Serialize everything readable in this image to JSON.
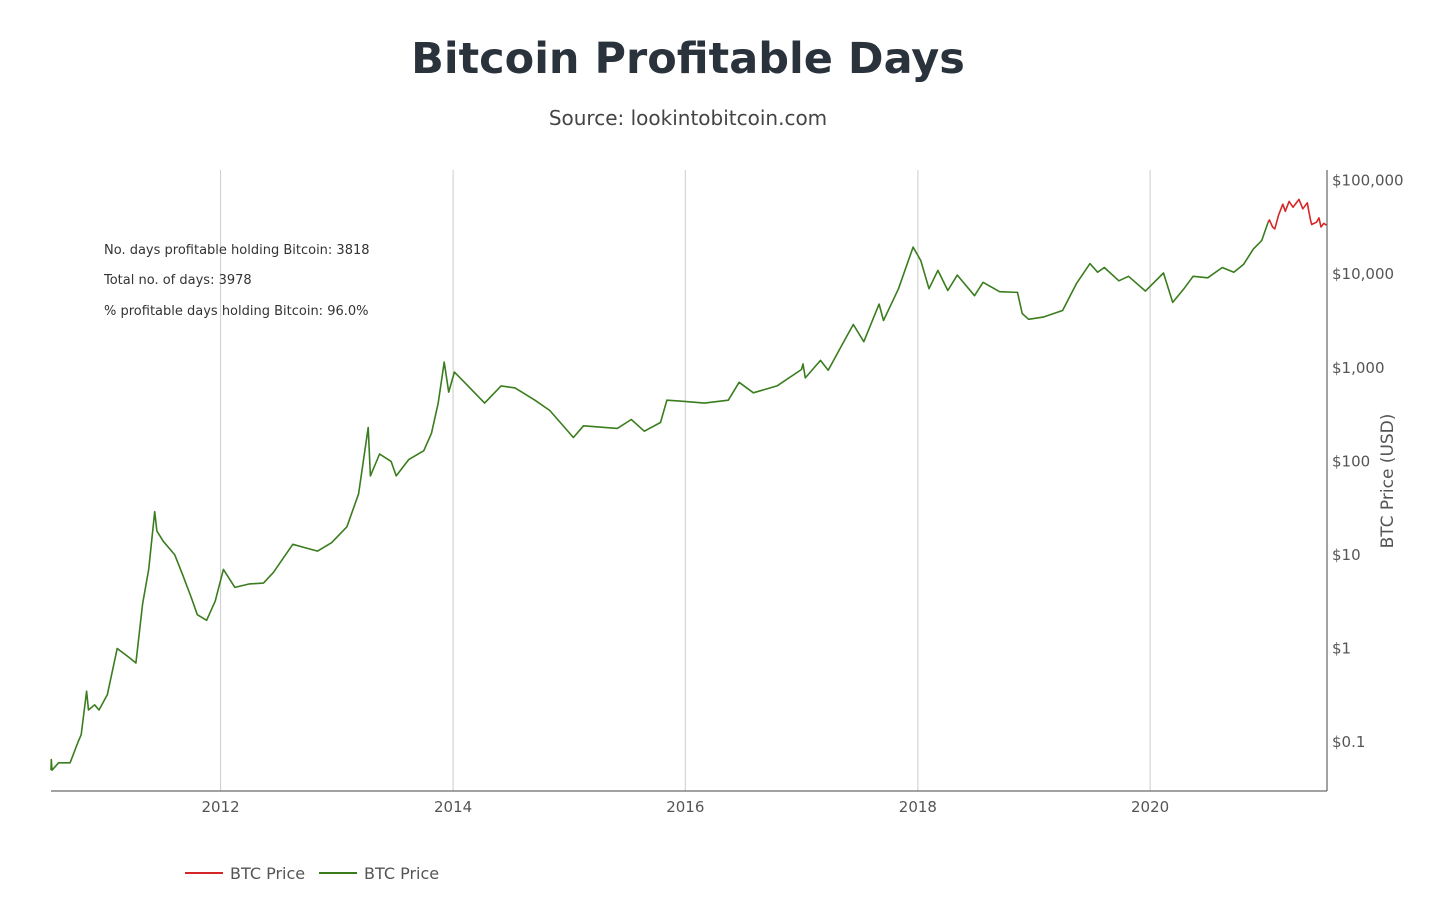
{
  "chart_data": {
    "type": "line",
    "title": "Bitcoin Profitable Days",
    "subtitle": "Source: lookintobitcoin.com",
    "xlabel": "",
    "ylabel": "BTC Price (USD)",
    "y_scale": "log",
    "ylim": [
      0.03,
      130000
    ],
    "xlim": [
      "2010-07-17",
      "2021-07-10"
    ],
    "x_ticks": [
      "2012",
      "2014",
      "2016",
      "2018",
      "2020"
    ],
    "x_tick_values": [
      "2012-01-01",
      "2014-01-01",
      "2016-01-01",
      "2018-01-01",
      "2020-01-01"
    ],
    "y_ticks": [
      "$0.1",
      "$1",
      "$10",
      "$100",
      "$1,000",
      "$10,000",
      "$100,000"
    ],
    "y_tick_values": [
      0.1,
      1,
      10,
      100,
      1000,
      10000,
      100000
    ],
    "x_grid": true,
    "y_grid": false,
    "legend_position": "bottom-left",
    "annotations": [
      "No. days profitable holding Bitcoin: 3818",
      "Total no. of days: 3978",
      "% profitable days holding Bitcoin: 96.0%"
    ],
    "series": [
      {
        "name": "BTC Price",
        "color": "#d62728",
        "points": [
          [
            "2021-01-06",
            36000
          ],
          [
            "2021-01-10",
            38000
          ],
          [
            "2021-01-20",
            32000
          ],
          [
            "2021-01-27",
            30500
          ],
          [
            "2021-02-08",
            43000
          ],
          [
            "2021-02-21",
            56000
          ],
          [
            "2021-03-01",
            47000
          ],
          [
            "2021-03-13",
            60000
          ],
          [
            "2021-03-25",
            52000
          ],
          [
            "2021-04-13",
            63000
          ],
          [
            "2021-04-25",
            50000
          ],
          [
            "2021-05-09",
            58000
          ],
          [
            "2021-05-13",
            49000
          ],
          [
            "2021-05-19",
            38000
          ],
          [
            "2021-05-23",
            34000
          ],
          [
            "2021-06-07",
            36000
          ],
          [
            "2021-06-15",
            40000
          ],
          [
            "2021-06-21",
            32000
          ],
          [
            "2021-06-30",
            35000
          ],
          [
            "2021-07-08",
            33500
          ]
        ]
      },
      {
        "name": "BTC Price",
        "color": "#3a7d1e",
        "points": [
          [
            "2010-07-17",
            0.05
          ],
          [
            "2010-07-18",
            0.065
          ],
          [
            "2010-07-20",
            0.05
          ],
          [
            "2010-08-10",
            0.06
          ],
          [
            "2010-09-15",
            0.06
          ],
          [
            "2010-10-10",
            0.1
          ],
          [
            "2010-10-20",
            0.12
          ],
          [
            "2010-11-06",
            0.35
          ],
          [
            "2010-11-12",
            0.22
          ],
          [
            "2010-12-01",
            0.25
          ],
          [
            "2010-12-15",
            0.22
          ],
          [
            "2011-01-10",
            0.32
          ],
          [
            "2011-02-10",
            1.0
          ],
          [
            "2011-03-20",
            0.8
          ],
          [
            "2011-04-10",
            0.7
          ],
          [
            "2011-05-01",
            3.0
          ],
          [
            "2011-05-20",
            7.0
          ],
          [
            "2011-06-08",
            29.0
          ],
          [
            "2011-06-15",
            18.0
          ],
          [
            "2011-07-05",
            14.0
          ],
          [
            "2011-08-10",
            10.0
          ],
          [
            "2011-09-05",
            6.0
          ],
          [
            "2011-10-01",
            3.5
          ],
          [
            "2011-10-20",
            2.3
          ],
          [
            "2011-11-18",
            2.0
          ],
          [
            "2011-12-15",
            3.2
          ],
          [
            "2012-01-10",
            7.0
          ],
          [
            "2012-02-15",
            4.5
          ],
          [
            "2012-04-01",
            4.9
          ],
          [
            "2012-05-15",
            5.0
          ],
          [
            "2012-06-15",
            6.5
          ],
          [
            "2012-08-15",
            13.0
          ],
          [
            "2012-09-20",
            12.0
          ],
          [
            "2012-11-01",
            11.0
          ],
          [
            "2012-12-15",
            13.5
          ],
          [
            "2013-02-01",
            20.0
          ],
          [
            "2013-03-10",
            45.0
          ],
          [
            "2013-04-09",
            230.0
          ],
          [
            "2013-04-16",
            70.0
          ],
          [
            "2013-05-15",
            120.0
          ],
          [
            "2013-06-20",
            100.0
          ],
          [
            "2013-07-06",
            70.0
          ],
          [
            "2013-08-15",
            105.0
          ],
          [
            "2013-10-01",
            130.0
          ],
          [
            "2013-10-25",
            200.0
          ],
          [
            "2013-11-15",
            420.0
          ],
          [
            "2013-12-04",
            1150.0
          ],
          [
            "2013-12-18",
            550.0
          ],
          [
            "2014-01-05",
            900.0
          ],
          [
            "2014-02-15",
            650.0
          ],
          [
            "2014-04-10",
            420.0
          ],
          [
            "2014-06-01",
            640.0
          ],
          [
            "2014-07-15",
            610.0
          ],
          [
            "2014-09-15",
            450.0
          ],
          [
            "2014-11-01",
            350.0
          ],
          [
            "2015-01-14",
            180.0
          ],
          [
            "2015-02-15",
            240.0
          ],
          [
            "2015-06-01",
            225.0
          ],
          [
            "2015-07-15",
            280.0
          ],
          [
            "2015-08-25",
            210.0
          ],
          [
            "2015-10-15",
            260.0
          ],
          [
            "2015-11-04",
            450.0
          ],
          [
            "2015-12-20",
            440.0
          ],
          [
            "2016-03-01",
            420.0
          ],
          [
            "2016-05-15",
            450.0
          ],
          [
            "2016-06-18",
            700.0
          ],
          [
            "2016-08-02",
            540.0
          ],
          [
            "2016-10-15",
            640.0
          ],
          [
            "2016-12-31",
            960.0
          ],
          [
            "2017-01-05",
            1100.0
          ],
          [
            "2017-01-12",
            780.0
          ],
          [
            "2017-03-01",
            1200.0
          ],
          [
            "2017-03-25",
            940.0
          ],
          [
            "2017-05-20",
            2100.0
          ],
          [
            "2017-06-12",
            2900.0
          ],
          [
            "2017-07-15",
            1900.0
          ],
          [
            "2017-09-01",
            4800.0
          ],
          [
            "2017-09-15",
            3200.0
          ],
          [
            "2017-11-01",
            7000.0
          ],
          [
            "2017-12-17",
            19500.0
          ],
          [
            "2018-01-10",
            14000.0
          ],
          [
            "2018-02-05",
            7000.0
          ],
          [
            "2018-03-05",
            11000.0
          ],
          [
            "2018-04-05",
            6700.0
          ],
          [
            "2018-05-05",
            9800.0
          ],
          [
            "2018-06-28",
            5900.0
          ],
          [
            "2018-07-25",
            8200.0
          ],
          [
            "2018-09-15",
            6500.0
          ],
          [
            "2018-11-10",
            6400.0
          ],
          [
            "2018-11-25",
            3800.0
          ],
          [
            "2018-12-15",
            3300.0
          ],
          [
            "2019-02-01",
            3500.0
          ],
          [
            "2019-04-01",
            4100.0
          ],
          [
            "2019-05-15",
            8000.0
          ],
          [
            "2019-06-26",
            13000.0
          ],
          [
            "2019-07-20",
            10500.0
          ],
          [
            "2019-08-10",
            11800.0
          ],
          [
            "2019-09-25",
            8500.0
          ],
          [
            "2019-10-25",
            9500.0
          ],
          [
            "2019-12-17",
            6600.0
          ],
          [
            "2020-02-12",
            10300.0
          ],
          [
            "2020-03-12",
            5000.0
          ],
          [
            "2020-04-15",
            6900.0
          ],
          [
            "2020-05-15",
            9500.0
          ],
          [
            "2020-06-30",
            9150.0
          ],
          [
            "2020-08-15",
            11800.0
          ],
          [
            "2020-09-20",
            10500.0
          ],
          [
            "2020-10-21",
            12800.0
          ],
          [
            "2020-11-20",
            18500.0
          ],
          [
            "2020-12-17",
            23000.0
          ],
          [
            "2021-01-06",
            36000.0
          ]
        ]
      }
    ]
  }
}
